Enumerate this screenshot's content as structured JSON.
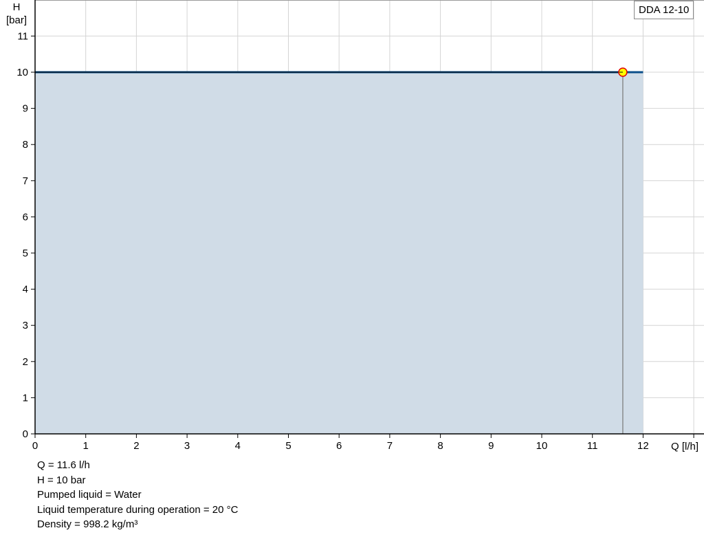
{
  "chart_data": {
    "type": "line",
    "title": "",
    "xlabel": "Q [l/h]",
    "ylabel_line1": "H",
    "ylabel_line2": "[bar]",
    "xlim": [
      0,
      13
    ],
    "ylim": [
      0,
      12
    ],
    "x_ticks": [
      0,
      1,
      2,
      3,
      4,
      5,
      6,
      7,
      8,
      9,
      10,
      11,
      12
    ],
    "y_ticks": [
      0,
      1,
      2,
      3,
      4,
      5,
      6,
      7,
      8,
      9,
      10,
      11
    ],
    "grid": true,
    "series": [
      {
        "name": "DDA 12-10",
        "x": [
          0,
          12
        ],
        "y": [
          10,
          10
        ],
        "color": "#0b4f8a",
        "fill": "#d0dce7"
      }
    ],
    "operating_point": {
      "x": 11.6,
      "y": 10,
      "color": "#ffff00",
      "border": "#e00000"
    },
    "legend": "top-right"
  },
  "info": [
    "Q = 11.6 l/h",
    "H = 10 bar",
    "Pumped liquid = Water",
    "Liquid temperature during operation = 20 °C",
    "Density = 998.2 kg/m³"
  ]
}
